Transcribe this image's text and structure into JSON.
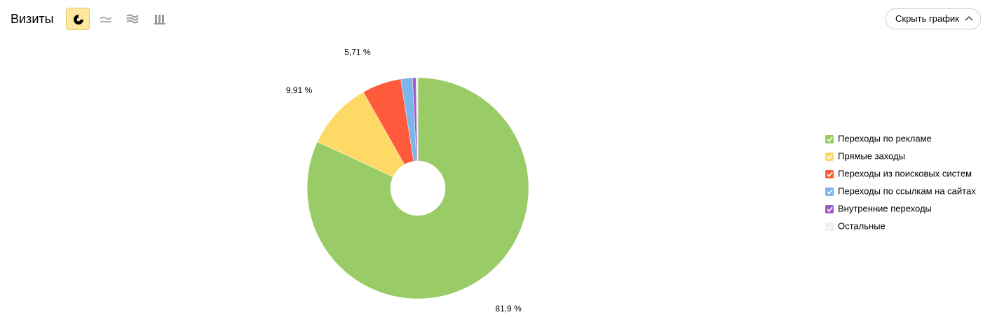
{
  "header": {
    "title": "Визиты",
    "hide_button": "Скрыть график"
  },
  "chart_data": {
    "type": "pie",
    "categories": [
      "Переходы по рекламе",
      "Прямые заходы",
      "Переходы из поисковых систем",
      "Переходы по ссылкам на сайтах",
      "Внутренние переходы",
      "Остальные"
    ],
    "values": [
      81.9,
      9.91,
      5.71,
      1.7,
      0.5,
      0.28
    ],
    "value_labels": [
      "81,9 %",
      "9,91 %",
      "5,71 %",
      null,
      null,
      null
    ],
    "colors": [
      "#99cc66",
      "#ffd966",
      "#ff5a3c",
      "#7cb5ec",
      "#a05ac8",
      "#eeeeee"
    ],
    "legend": "right"
  }
}
